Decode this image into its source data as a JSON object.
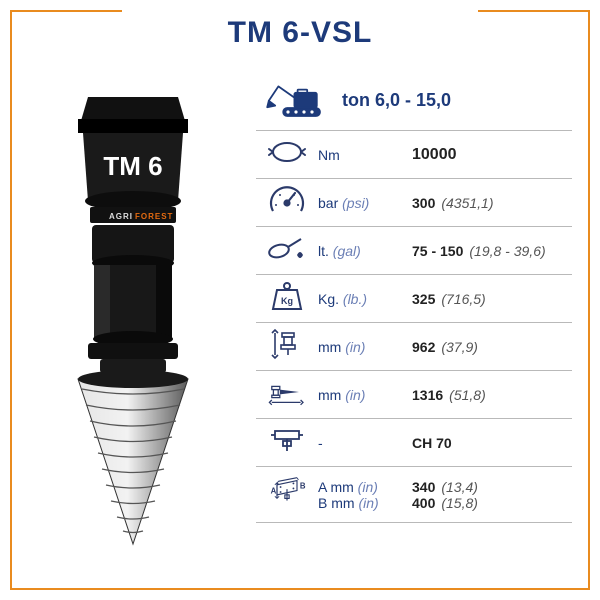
{
  "colors": {
    "frame": "#e98b1f",
    "title": "#1d3a7a",
    "label": "#1d3a7a",
    "italic": "#6b7fb5",
    "product_body": "#181818",
    "product_text": "#ffffff",
    "cone_light": "#d9d9d9",
    "cone_dark": "#7a7a7a",
    "brand_orange": "#e36a10",
    "icon_stroke": "#2b3a6a"
  },
  "title": "TM 6-VSL",
  "product_label": "TM 6",
  "brand_label": "AGRIFOREST",
  "excavator": {
    "label": "ton 6,0 - 15,0"
  },
  "ab_labels": {
    "A": "A",
    "B": "B"
  },
  "rows": [
    {
      "icon": "torque",
      "unit1": "Nm",
      "unit2": "",
      "val1": "10000",
      "val2": "",
      "bold": true
    },
    {
      "icon": "pressure",
      "unit1": "bar",
      "unit2": "(psi)",
      "val1": "300",
      "val2": "(4351,1)"
    },
    {
      "icon": "oil",
      "unit1": "lt.",
      "unit2": "(gal)",
      "val1": "75 - 150",
      "val2": "(19,8 - 39,6)"
    },
    {
      "icon": "weight",
      "unit1": "Kg.",
      "unit2": "(lb.)",
      "val1": "325",
      "val2": "(716,5)"
    },
    {
      "icon": "height",
      "unit1": "mm",
      "unit2": "(in)",
      "val1": "962",
      "val2": "(37,9)"
    },
    {
      "icon": "length",
      "unit1": "mm",
      "unit2": "(in)",
      "val1": "1316",
      "val2": "(51,8)"
    },
    {
      "icon": "shaft",
      "unit1": "-",
      "unit2": "",
      "val1": "CH 70",
      "val2": ""
    },
    {
      "icon": "plate",
      "unit1": "A mm",
      "unit2": "(in)",
      "val1": "340",
      "val2": "(13,4)",
      "unit1b": "B mm",
      "unit2b": "(in)",
      "val1b": "400",
      "val2b": "(15,8)"
    }
  ]
}
